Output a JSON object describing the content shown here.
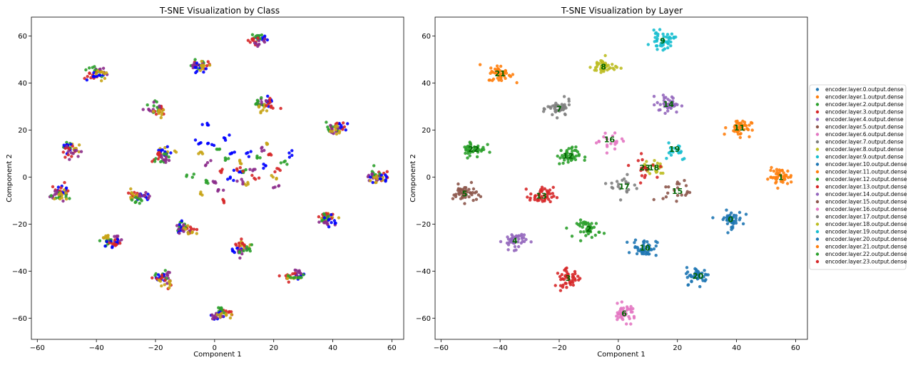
{
  "chart_data": [
    {
      "type": "scatter",
      "title": "T-SNE Visualization by Class",
      "xlabel": "Component 1",
      "ylabel": "Component 2",
      "xlim": [
        -62,
        64
      ],
      "ylim": [
        -69,
        68
      ],
      "xticks": [
        -60,
        -40,
        -20,
        0,
        20,
        40,
        60
      ],
      "yticks": [
        -60,
        -40,
        -20,
        0,
        20,
        40,
        60
      ],
      "xtick_labels": [
        "−60",
        "−40",
        "−20",
        "0",
        "20",
        "40",
        "60"
      ],
      "ytick_labels": [
        "−60",
        "−40",
        "−20",
        "0",
        "20",
        "40",
        "60"
      ],
      "class_colors": [
        "#d62728",
        "#2ca02c",
        "#0000ff",
        "#8b2b8b",
        "#c8a416"
      ],
      "clusters": [
        {
          "x": 15,
          "y": 58,
          "classes": [
            2,
            1,
            0,
            3
          ]
        },
        {
          "x": -5,
          "y": 47,
          "classes": [
            0,
            1,
            3,
            2,
            4
          ]
        },
        {
          "x": -40,
          "y": 44,
          "classes": [
            3,
            1,
            0,
            2,
            4
          ]
        },
        {
          "x": 17,
          "y": 31,
          "classes": [
            2,
            3,
            1,
            4,
            0
          ]
        },
        {
          "x": -20,
          "y": 29,
          "classes": [
            0,
            1,
            3,
            4
          ]
        },
        {
          "x": 41,
          "y": 21,
          "classes": [
            2,
            0,
            1,
            3,
            4
          ]
        },
        {
          "x": -49,
          "y": 12,
          "classes": [
            4,
            1,
            2,
            0,
            3
          ]
        },
        {
          "x": -17,
          "y": 9,
          "classes": [
            4,
            2,
            0,
            1,
            3
          ]
        },
        {
          "x": 55,
          "y": 0,
          "classes": [
            0,
            1,
            3,
            4,
            2
          ]
        },
        {
          "x": -52,
          "y": -7,
          "classes": [
            2,
            0,
            3,
            1,
            4
          ]
        },
        {
          "x": -26,
          "y": -8,
          "classes": [
            2,
            0,
            4,
            1,
            3
          ]
        },
        {
          "x": 38,
          "y": -18,
          "classes": [
            4,
            0,
            1,
            3,
            2
          ]
        },
        {
          "x": -10,
          "y": -22,
          "classes": [
            0,
            1,
            2,
            3,
            4
          ]
        },
        {
          "x": -35,
          "y": -27,
          "classes": [
            3,
            4,
            1,
            2,
            0
          ]
        },
        {
          "x": 9,
          "y": -30,
          "classes": [
            4,
            0,
            2,
            3,
            1
          ]
        },
        {
          "x": -17,
          "y": -43,
          "classes": [
            3,
            1,
            2,
            0,
            4
          ]
        },
        {
          "x": 27,
          "y": -42,
          "classes": [
            2,
            3,
            0,
            4,
            1
          ]
        },
        {
          "x": 2,
          "y": -58,
          "classes": [
            0,
            1,
            2,
            3,
            4
          ]
        }
      ],
      "center_points": [
        [
          -3,
          22,
          2
        ],
        [
          -6,
          15,
          2
        ],
        [
          -1,
          14,
          2
        ],
        [
          4,
          17,
          2
        ],
        [
          -5,
          10,
          4
        ],
        [
          1,
          12,
          1
        ],
        [
          -8,
          0,
          1
        ],
        [
          -5,
          -7,
          4
        ],
        [
          0,
          -2,
          3
        ],
        [
          2,
          2,
          0
        ],
        [
          2,
          -6,
          3
        ],
        [
          4,
          8,
          1
        ],
        [
          3,
          -10,
          0
        ],
        [
          6,
          -1,
          2
        ],
        [
          8,
          2,
          2
        ],
        [
          9,
          6,
          4
        ],
        [
          10,
          2,
          1
        ],
        [
          11,
          -3,
          4
        ],
        [
          8,
          3,
          0
        ],
        [
          13,
          3,
          3
        ],
        [
          15,
          8,
          1
        ],
        [
          16,
          12,
          3
        ],
        [
          18,
          14,
          4
        ],
        [
          19,
          10,
          0
        ],
        [
          20,
          0,
          4
        ],
        [
          21,
          -4,
          3
        ],
        [
          22,
          3,
          0
        ],
        [
          25,
          10,
          2
        ],
        [
          23,
          6,
          1
        ],
        [
          12,
          10,
          2
        ],
        [
          -3,
          -2,
          1
        ],
        [
          6,
          10,
          2
        ],
        [
          14,
          0,
          0
        ],
        [
          17,
          5,
          2
        ],
        [
          -2,
          6,
          3
        ],
        [
          9,
          -2,
          3
        ]
      ]
    },
    {
      "type": "scatter",
      "title": "T-SNE Visualization by Layer",
      "xlabel": "Component 1",
      "ylabel": "Component 2",
      "xlim": [
        -62,
        64
      ],
      "ylim": [
        -69,
        68
      ],
      "xticks": [
        -60,
        -40,
        -20,
        0,
        20,
        40,
        60
      ],
      "yticks": [
        -60,
        -40,
        -20,
        0,
        20,
        40,
        60
      ],
      "xtick_labels": [
        "−60",
        "−40",
        "−20",
        "0",
        "20",
        "40",
        "60"
      ],
      "ytick_labels": [
        "−60",
        "−40",
        "−20",
        "0",
        "20",
        "40",
        "60"
      ],
      "legend_position": "right",
      "series": [
        {
          "name": "encoder.layer.0.output.dense",
          "label": "0",
          "color": "#1f77b4",
          "x": 38,
          "y": -18
        },
        {
          "name": "encoder.layer.1.output.dense",
          "label": "1",
          "color": "#ff7f0e",
          "x": 55,
          "y": 0
        },
        {
          "name": "encoder.layer.2.output.dense",
          "label": "2",
          "color": "#2ca02c",
          "x": -10,
          "y": -22
        },
        {
          "name": "encoder.layer.3.output.dense",
          "label": "3",
          "color": "#d62728",
          "x": -17,
          "y": -43
        },
        {
          "name": "encoder.layer.4.output.dense",
          "label": "4",
          "color": "#9467bd",
          "x": -35,
          "y": -27
        },
        {
          "name": "encoder.layer.5.output.dense",
          "label": "5",
          "color": "#8c564b",
          "x": -52,
          "y": -7
        },
        {
          "name": "encoder.layer.6.output.dense",
          "label": "6",
          "color": "#e377c2",
          "x": 2,
          "y": -58
        },
        {
          "name": "encoder.layer.7.output.dense",
          "label": "7",
          "color": "#7f7f7f",
          "x": -20,
          "y": 29
        },
        {
          "name": "encoder.layer.8.output.dense",
          "label": "8",
          "color": "#bcbd22",
          "x": -5,
          "y": 47
        },
        {
          "name": "encoder.layer.9.output.dense",
          "label": "9",
          "color": "#17becf",
          "x": 15,
          "y": 58
        },
        {
          "name": "encoder.layer.10.output.dense",
          "label": "10",
          "color": "#1f77b4",
          "x": 9,
          "y": -30
        },
        {
          "name": "encoder.layer.11.output.dense",
          "label": "11",
          "color": "#ff7f0e",
          "x": 41,
          "y": 21
        },
        {
          "name": "encoder.layer.12.output.dense",
          "label": "12",
          "color": "#2ca02c",
          "x": -17,
          "y": 9
        },
        {
          "name": "encoder.layer.13.output.dense",
          "label": "13",
          "color": "#d62728",
          "x": -26,
          "y": -8
        },
        {
          "name": "encoder.layer.14.output.dense",
          "label": "14",
          "color": "#9467bd",
          "x": 17,
          "y": 31
        },
        {
          "name": "encoder.layer.15.output.dense",
          "label": "15",
          "color": "#8c564b",
          "x": 20,
          "y": -6
        },
        {
          "name": "encoder.layer.16.output.dense",
          "label": "16",
          "color": "#e377c2",
          "x": -3,
          "y": 16
        },
        {
          "name": "encoder.layer.17.output.dense",
          "label": "17",
          "color": "#7f7f7f",
          "x": 2,
          "y": -4
        },
        {
          "name": "encoder.layer.18.output.dense",
          "label": "18",
          "color": "#bcbd22",
          "x": 12,
          "y": 4
        },
        {
          "name": "encoder.layer.19.output.dense",
          "label": "19",
          "color": "#17becf",
          "x": 19,
          "y": 12
        },
        {
          "name": "encoder.layer.20.output.dense",
          "label": "20",
          "color": "#1f77b4",
          "x": 27,
          "y": -42
        },
        {
          "name": "encoder.layer.21.output.dense",
          "label": "21",
          "color": "#ff7f0e",
          "x": -40,
          "y": 44
        },
        {
          "name": "encoder.layer.22.output.dense",
          "label": "22",
          "color": "#2ca02c",
          "x": -49,
          "y": 12
        },
        {
          "name": "encoder.layer.23.output.dense",
          "label": "23",
          "color": "#d62728",
          "x": 9,
          "y": 4
        }
      ]
    }
  ]
}
